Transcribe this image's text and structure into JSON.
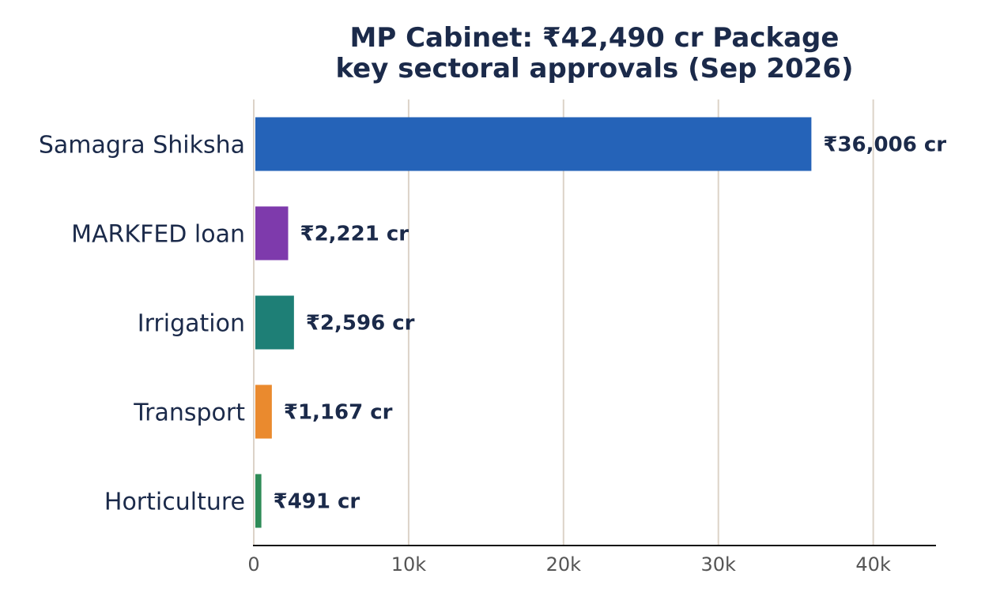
{
  "chart_data": {
    "type": "bar",
    "orientation": "horizontal",
    "title": "MP Cabinet: ₹42,490 cr Package\nkey sectoral approvals (Sep 2026)",
    "categories": [
      "Samagra Shiksha",
      "MARKFED loan",
      "Irrigation",
      "Transport",
      "Horticulture"
    ],
    "values": [
      36006,
      2221,
      2596,
      1167,
      491
    ],
    "value_labels": [
      "₹36,006 cr",
      "₹2,221 cr",
      "₹2,596 cr",
      "₹1,167 cr",
      "₹491 cr"
    ],
    "colors": [
      "#2563b8",
      "#7e3aac",
      "#1e7f76",
      "#ea8a2e",
      "#2e8b57"
    ],
    "xlim": [
      0,
      44000
    ],
    "xticks": [
      0,
      10000,
      20000,
      30000,
      40000
    ],
    "xtick_labels": [
      "0",
      "10k",
      "20k",
      "30k",
      "40k"
    ],
    "grid": "vertical",
    "legend": "none"
  },
  "style": {
    "text_color": "#1b2a4a",
    "tick_color": "#555555",
    "grid_color": "#dcd3c8",
    "axis_color": "#111111"
  }
}
